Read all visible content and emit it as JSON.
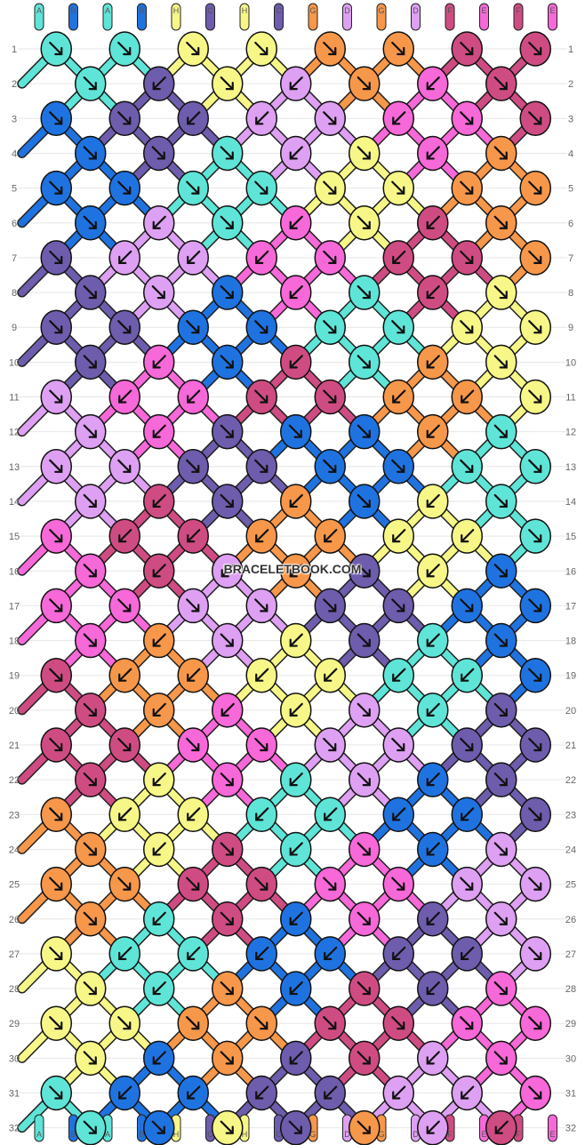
{
  "site_watermark": "BRACELETBOOK.COM",
  "strings": [
    "A",
    "B",
    "A",
    "B",
    "H",
    "C",
    "H",
    "C",
    "G",
    "D",
    "G",
    "D",
    "F",
    "E",
    "F",
    "E"
  ],
  "string_colors": {
    "A": "#5ee5d7",
    "B": "#1f73e0",
    "C": "#6e5cad",
    "D": "#dea0f2",
    "E": "#f768d8",
    "F": "#cf4c82",
    "G": "#f7974a",
    "H": "#f7f788"
  },
  "row_numbers": [
    "1",
    "2",
    "3",
    "4",
    "5",
    "6",
    "7",
    "8",
    "9",
    "10",
    "11",
    "12",
    "13",
    "14",
    "15",
    "16",
    "17",
    "18",
    "19",
    "20",
    "21",
    "22",
    "23",
    "24",
    "25",
    "26",
    "27",
    "28",
    "29",
    "30",
    "31",
    "32"
  ],
  "knot_rows": [
    {
      "c": [
        "A",
        "A",
        "H",
        "H",
        "G",
        "G",
        "F",
        "F"
      ],
      "d": [
        "r",
        "r",
        "r",
        "r",
        "r",
        "r",
        "r",
        "r"
      ]
    },
    {
      "c": [
        "A",
        "C",
        "H",
        "D",
        "G",
        "E",
        "F"
      ],
      "d": [
        "r",
        "l",
        "r",
        "l",
        "r",
        "l",
        "r"
      ]
    },
    {
      "c": [
        "B",
        "C",
        "C",
        "D",
        "D",
        "E",
        "E",
        "F"
      ],
      "d": [
        "r",
        "r",
        "l",
        "l",
        "r",
        "l",
        "r",
        "r"
      ]
    },
    {
      "c": [
        "B",
        "C",
        "A",
        "D",
        "H",
        "E",
        "G"
      ],
      "d": [
        "r",
        "r",
        "r",
        "l",
        "r",
        "l",
        "r"
      ]
    },
    {
      "c": [
        "B",
        "B",
        "A",
        "A",
        "H",
        "H",
        "G",
        "G"
      ],
      "d": [
        "r",
        "r",
        "r",
        "r",
        "r",
        "r",
        "r",
        "r"
      ]
    },
    {
      "c": [
        "B",
        "D",
        "A",
        "E",
        "H",
        "F",
        "G"
      ],
      "d": [
        "r",
        "l",
        "r",
        "l",
        "r",
        "l",
        "r"
      ]
    },
    {
      "c": [
        "C",
        "D",
        "D",
        "E",
        "E",
        "F",
        "F",
        "G"
      ],
      "d": [
        "r",
        "l",
        "l",
        "l",
        "r",
        "l",
        "r",
        "r"
      ]
    },
    {
      "c": [
        "C",
        "D",
        "B",
        "E",
        "A",
        "F",
        "H"
      ],
      "d": [
        "r",
        "r",
        "r",
        "l",
        "r",
        "l",
        "r"
      ]
    },
    {
      "c": [
        "C",
        "C",
        "B",
        "B",
        "A",
        "A",
        "H",
        "H"
      ],
      "d": [
        "r",
        "r",
        "r",
        "r",
        "r",
        "r",
        "r",
        "r"
      ]
    },
    {
      "c": [
        "C",
        "E",
        "B",
        "F",
        "A",
        "G",
        "H"
      ],
      "d": [
        "r",
        "l",
        "r",
        "l",
        "r",
        "l",
        "r"
      ]
    },
    {
      "c": [
        "D",
        "E",
        "E",
        "F",
        "F",
        "G",
        "G",
        "H"
      ],
      "d": [
        "r",
        "l",
        "l",
        "r",
        "r",
        "l",
        "l",
        "r"
      ]
    },
    {
      "c": [
        "D",
        "E",
        "C",
        "B",
        "B",
        "G",
        "A"
      ],
      "d": [
        "r",
        "l",
        "r",
        "r",
        "r",
        "l",
        "r"
      ]
    },
    {
      "c": [
        "D",
        "D",
        "C",
        "C",
        "B",
        "B",
        "A",
        "A"
      ],
      "d": [
        "r",
        "r",
        "r",
        "r",
        "r",
        "r",
        "r",
        "r"
      ]
    },
    {
      "c": [
        "D",
        "F",
        "C",
        "G",
        "B",
        "H",
        "A"
      ],
      "d": [
        "r",
        "l",
        "r",
        "l",
        "r",
        "l",
        "r"
      ]
    },
    {
      "c": [
        "E",
        "F",
        "F",
        "G",
        "G",
        "H",
        "H",
        "A"
      ],
      "d": [
        "r",
        "l",
        "l",
        "l",
        "l",
        "l",
        "l",
        "r"
      ]
    },
    {
      "c": [
        "E",
        "F",
        "D",
        "G",
        "C",
        "H",
        "B"
      ],
      "d": [
        "r",
        "l",
        "l",
        "l",
        "r",
        "l",
        "r"
      ]
    },
    {
      "c": [
        "E",
        "E",
        "D",
        "D",
        "C",
        "C",
        "B",
        "B"
      ],
      "d": [
        "r",
        "r",
        "r",
        "r",
        "r",
        "r",
        "r",
        "r"
      ]
    },
    {
      "c": [
        "E",
        "G",
        "D",
        "H",
        "C",
        "A",
        "B"
      ],
      "d": [
        "r",
        "l",
        "r",
        "l",
        "r",
        "l",
        "r"
      ]
    },
    {
      "c": [
        "F",
        "G",
        "G",
        "H",
        "H",
        "A",
        "A",
        "B"
      ],
      "d": [
        "r",
        "l",
        "l",
        "l",
        "l",
        "l",
        "l",
        "r"
      ]
    },
    {
      "c": [
        "F",
        "G",
        "E",
        "H",
        "D",
        "A",
        "C"
      ],
      "d": [
        "r",
        "l",
        "l",
        "l",
        "r",
        "l",
        "r"
      ]
    },
    {
      "c": [
        "F",
        "F",
        "E",
        "E",
        "D",
        "D",
        "C",
        "C"
      ],
      "d": [
        "r",
        "r",
        "r",
        "r",
        "r",
        "r",
        "r",
        "r"
      ]
    },
    {
      "c": [
        "F",
        "H",
        "E",
        "A",
        "D",
        "B",
        "C"
      ],
      "d": [
        "r",
        "l",
        "r",
        "l",
        "r",
        "l",
        "r"
      ]
    },
    {
      "c": [
        "G",
        "H",
        "H",
        "A",
        "A",
        "B",
        "B",
        "C"
      ],
      "d": [
        "r",
        "l",
        "l",
        "l",
        "l",
        "l",
        "l",
        "r"
      ]
    },
    {
      "c": [
        "G",
        "H",
        "F",
        "A",
        "E",
        "B",
        "D"
      ],
      "d": [
        "r",
        "l",
        "r",
        "l",
        "r",
        "l",
        "r"
      ]
    },
    {
      "c": [
        "G",
        "G",
        "F",
        "F",
        "E",
        "E",
        "D",
        "D"
      ],
      "d": [
        "r",
        "r",
        "r",
        "r",
        "r",
        "r",
        "r",
        "r"
      ]
    },
    {
      "c": [
        "G",
        "A",
        "F",
        "B",
        "E",
        "C",
        "D"
      ],
      "d": [
        "r",
        "l",
        "r",
        "l",
        "r",
        "l",
        "r"
      ]
    },
    {
      "c": [
        "H",
        "A",
        "A",
        "B",
        "B",
        "C",
        "C",
        "D"
      ],
      "d": [
        "r",
        "l",
        "l",
        "l",
        "l",
        "l",
        "l",
        "r"
      ]
    },
    {
      "c": [
        "H",
        "A",
        "G",
        "B",
        "F",
        "C",
        "E"
      ],
      "d": [
        "r",
        "l",
        "r",
        "l",
        "r",
        "l",
        "r"
      ]
    },
    {
      "c": [
        "H",
        "H",
        "G",
        "G",
        "F",
        "F",
        "E",
        "E"
      ],
      "d": [
        "r",
        "r",
        "r",
        "r",
        "r",
        "r",
        "r",
        "r"
      ]
    },
    {
      "c": [
        "H",
        "B",
        "G",
        "C",
        "F",
        "D",
        "E"
      ],
      "d": [
        "r",
        "l",
        "r",
        "l",
        "r",
        "l",
        "r"
      ]
    },
    {
      "c": [
        "A",
        "B",
        "B",
        "C",
        "C",
        "D",
        "D",
        "E"
      ],
      "d": [
        "r",
        "l",
        "l",
        "l",
        "l",
        "l",
        "l",
        "r"
      ]
    },
    {
      "c": [
        "A",
        "B",
        "H",
        "C",
        "G",
        "D",
        "F"
      ],
      "d": [
        "r",
        "r",
        "r",
        "r",
        "r",
        "l",
        "l"
      ]
    }
  ]
}
